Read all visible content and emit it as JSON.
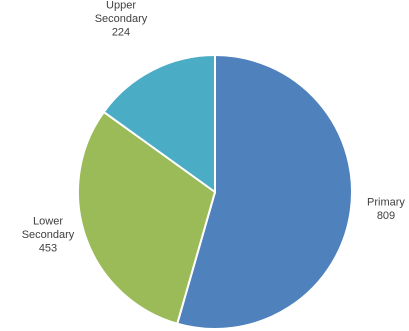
{
  "chart_data": {
    "type": "pie",
    "title": "",
    "slices": [
      {
        "label": "Primary",
        "value": 809,
        "color": "#4f81bd"
      },
      {
        "label": "Lower Secondary",
        "value": 453,
        "color": "#9bbb59"
      },
      {
        "label": "Upper Secondary",
        "value": 224,
        "color": "#4bacc6"
      }
    ],
    "label_lines": [
      [
        "Primary"
      ],
      [
        "Lower",
        "Secondary"
      ],
      [
        "Upper",
        "Secondary"
      ]
    ],
    "value_labels": [
      "809",
      "453",
      "224"
    ],
    "legend": "none"
  }
}
